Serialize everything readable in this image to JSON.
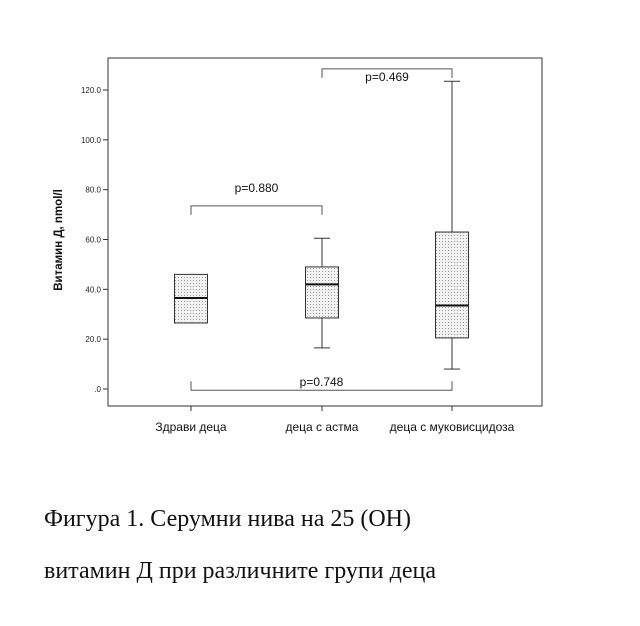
{
  "chart_data": {
    "type": "boxplot",
    "ylabel": "Витамин Д,  nmol/l",
    "ylim": [
      -5,
      132
    ],
    "yticks": [
      0,
      20,
      40,
      60,
      80,
      100,
      120
    ],
    "ytick_labels": [
      ".0",
      "20.0",
      "40.0",
      "60.0",
      "80.0",
      "100.0",
      "120.0"
    ],
    "categories": [
      "Здрави деца",
      "деца с астма",
      "деца с муковисцидоза"
    ],
    "boxes": [
      {
        "name": "Здрави деца",
        "q1": 26.5,
        "median": 36.5,
        "q3": 46,
        "whisker_low": null,
        "whisker_high": null
      },
      {
        "name": "деца с астма",
        "q1": 28.5,
        "median": 42,
        "q3": 49,
        "whisker_low": 16.5,
        "whisker_high": 60.5
      },
      {
        "name": "деца с муковисцидоза",
        "q1": 20.5,
        "median": 33.5,
        "q3": 63,
        "whisker_low": 8,
        "whisker_high": 123.5
      }
    ],
    "comparisons": [
      {
        "groups": [
          0,
          1
        ],
        "label": "p=0.880",
        "y": 73.5
      },
      {
        "groups": [
          1,
          2
        ],
        "label": "p=0.469",
        "y": 128.5
      },
      {
        "groups": [
          0,
          2
        ],
        "label": "p=0.748",
        "y": -0.5
      }
    ],
    "grid": false,
    "legend": "none"
  },
  "caption": {
    "line1": "Фигура 1. Серумни нива на 25 (OH)",
    "line2": "витамин Д при различните групи деца"
  }
}
